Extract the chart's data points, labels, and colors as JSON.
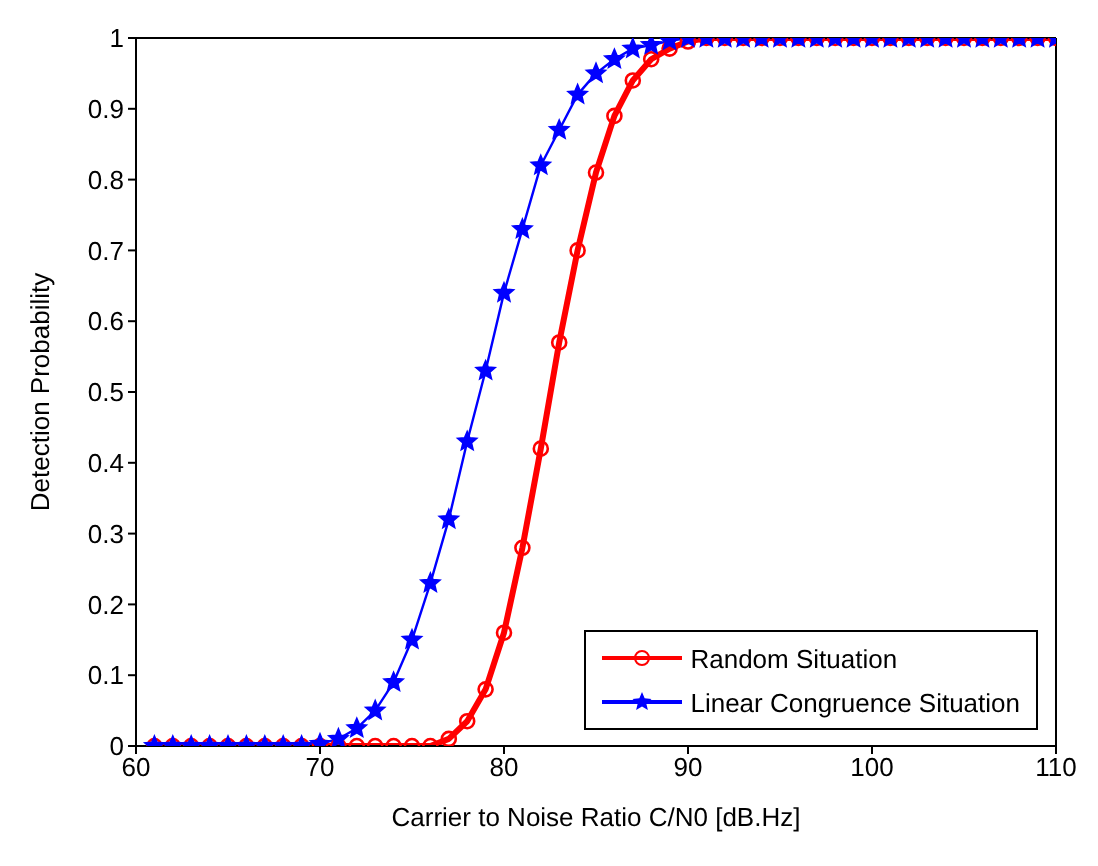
{
  "chart_data": {
    "type": "line",
    "xlabel": "Carrier to Noise Ratio C/N0 [dB.Hz]",
    "ylabel": "Detection Probability",
    "x": [
      61,
      62,
      63,
      64,
      65,
      66,
      67,
      68,
      69,
      70,
      71,
      72,
      73,
      74,
      75,
      76,
      77,
      78,
      79,
      80,
      81,
      82,
      83,
      84,
      85,
      86,
      87,
      88,
      89,
      90,
      91,
      92,
      93,
      94,
      95,
      96,
      97,
      98,
      99,
      100,
      101,
      102,
      103,
      104,
      105,
      106,
      107,
      108,
      109,
      110
    ],
    "series": [
      {
        "name": "Random Situation",
        "color": "#ff0000",
        "marker": "circle",
        "values": [
          0,
          0,
          0,
          0,
          0,
          0,
          0,
          0,
          0,
          0,
          0,
          0,
          0,
          0,
          0,
          0,
          0.01,
          0.035,
          0.08,
          0.16,
          0.28,
          0.42,
          0.57,
          0.7,
          0.81,
          0.89,
          0.94,
          0.97,
          0.985,
          0.995,
          1,
          1,
          1,
          1,
          1,
          1,
          1,
          1,
          1,
          1,
          1,
          1,
          1,
          1,
          1,
          1,
          1,
          1,
          1,
          1
        ]
      },
      {
        "name": "Linear Congruence Situation",
        "color": "#0000ff",
        "marker": "star",
        "values": [
          0,
          0,
          0,
          0,
          0,
          0,
          0,
          0,
          0,
          0.003,
          0.01,
          0.025,
          0.05,
          0.09,
          0.15,
          0.23,
          0.32,
          0.43,
          0.53,
          0.64,
          0.73,
          0.82,
          0.87,
          0.92,
          0.95,
          0.97,
          0.985,
          0.99,
          0.996,
          1,
          1,
          1,
          1,
          1,
          1,
          1,
          1,
          1,
          1,
          1,
          1,
          1,
          1,
          1,
          1,
          1,
          1,
          1,
          1,
          1
        ]
      }
    ],
    "xlim": [
      60,
      110
    ],
    "xticks": [
      60,
      70,
      80,
      90,
      100,
      110
    ],
    "ylim": [
      0,
      1
    ],
    "yticks": [
      0,
      0.1,
      0.2,
      0.3,
      0.4,
      0.5,
      0.6,
      0.7,
      0.8,
      0.9,
      1
    ],
    "grid": false,
    "legend": "bottom right",
    "line_style": "solid"
  }
}
